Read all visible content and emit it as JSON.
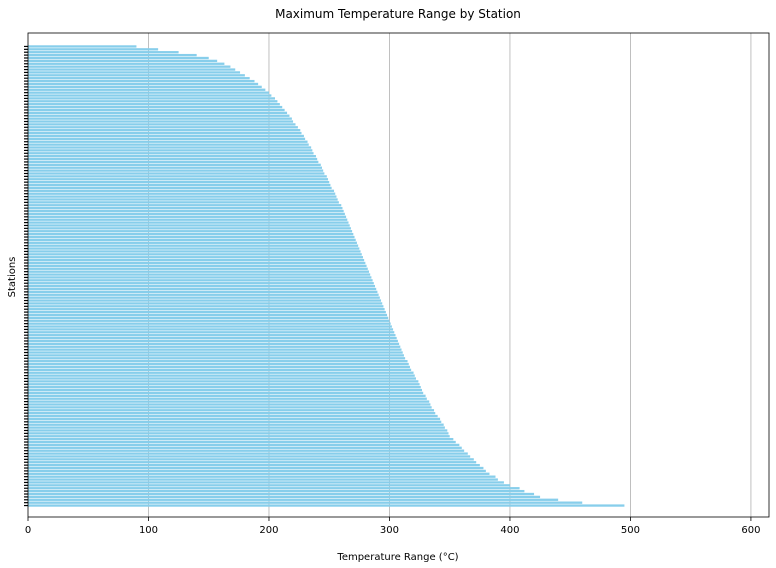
{
  "chart_data": {
    "type": "bar",
    "orientation": "horizontal",
    "title": "Maximum Temperature Range by Station",
    "xlabel": "Temperature Range (°C)",
    "ylabel": "Stations",
    "xlim": [
      0,
      615
    ],
    "xticks": [
      0,
      100,
      200,
      300,
      400,
      500,
      600
    ],
    "grid": "vertical",
    "bar_color": "#87CEEB",
    "sort": "descending, largest at bottom",
    "values": [
      495,
      460,
      440,
      425,
      420,
      412,
      408,
      400,
      395,
      390,
      388,
      383,
      380,
      378,
      375,
      372,
      370,
      367,
      365,
      362,
      360,
      358,
      355,
      353,
      350,
      349,
      348,
      346,
      345,
      343,
      342,
      340,
      338,
      337,
      335,
      334,
      333,
      331,
      330,
      328,
      327,
      326,
      325,
      324,
      322,
      321,
      320,
      318,
      317,
      316,
      315,
      313,
      312,
      311,
      310,
      309,
      308,
      307,
      306,
      305,
      304,
      303,
      302,
      301,
      300,
      299,
      298,
      297,
      296,
      295,
      294,
      293,
      292,
      291,
      290,
      289,
      288,
      287,
      286,
      285,
      284,
      283,
      282,
      281,
      280,
      279,
      278,
      277,
      276,
      275,
      274,
      273,
      272,
      271,
      270,
      269,
      268,
      267,
      266,
      265,
      264,
      263,
      262,
      261,
      260,
      258,
      257,
      256,
      255,
      254,
      252,
      251,
      250,
      249,
      248,
      246,
      245,
      244,
      243,
      241,
      240,
      239,
      237,
      236,
      235,
      233,
      232,
      230,
      229,
      227,
      226,
      224,
      222,
      220,
      219,
      217,
      215,
      213,
      211,
      209,
      207,
      205,
      202,
      200,
      197,
      194,
      191,
      188,
      184,
      180,
      176,
      172,
      168,
      163,
      157,
      150,
      140,
      125,
      108,
      90
    ]
  }
}
